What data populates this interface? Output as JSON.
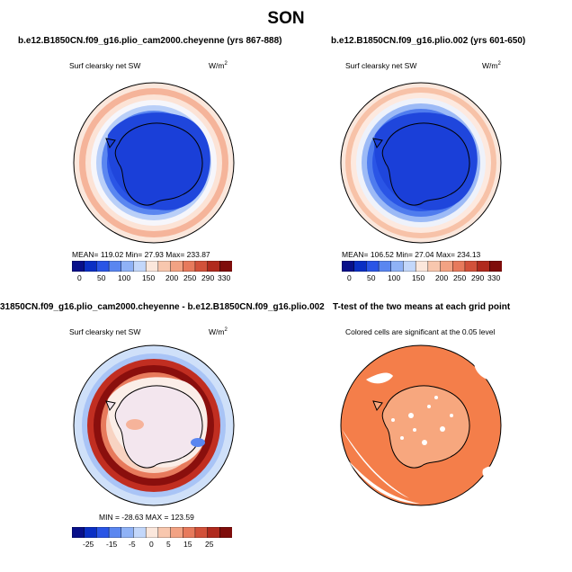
{
  "figure_title": "SON",
  "panels": [
    {
      "title": "b.e12.B1850CN.f09_g16.plio_cam2000.cheyenne (yrs 867-888)",
      "left_label": "Surf clearsky net SW",
      "right_label": "W/m",
      "right_label_sup": "2",
      "stats": "MEAN= 119.02   Min=   27.93   Max= 233.87",
      "colorbar_ticks": [
        "0",
        "50",
        "100",
        "150",
        "200",
        "250",
        "290",
        "330"
      ]
    },
    {
      "title": "b.e12.B1850CN.f09_g16.plio.002 (yrs 601-650)",
      "left_label": "Surf clearsky net SW",
      "right_label": "W/m",
      "right_label_sup": "2",
      "stats": "MEAN= 106.52   Min=   27.04   Max= 234.13",
      "colorbar_ticks": [
        "0",
        "50",
        "100",
        "150",
        "200",
        "250",
        "290",
        "330"
      ]
    },
    {
      "title": "31850CN.f09_g16.plio_cam2000.cheyenne - b.e12.B1850CN.f09_g16.plio.002",
      "left_label": "Surf clearsky net SW",
      "right_label": "W/m",
      "right_label_sup": "2",
      "stats": "MIN = -28.63  MAX = 123.59",
      "colorbar_ticks": [
        "-25",
        "-15",
        "-5",
        "0",
        "5",
        "15",
        "25"
      ]
    },
    {
      "title": "T-test of the two means at each grid point",
      "left_label": "Colored cells are significant at the 0.05 level"
    }
  ],
  "colors": {
    "abs_scale": [
      "#08108a",
      "#0a2fc4",
      "#2a55e6",
      "#5a86f0",
      "#8fb2f6",
      "#c3d7fa",
      "#fbe7dc",
      "#f8c7ae",
      "#f2a283",
      "#e77a5c",
      "#d2513a",
      "#b02a1e",
      "#7f0d0b"
    ],
    "diff_scale": [
      "#08108a",
      "#0a2fc4",
      "#2a55e6",
      "#5a86f0",
      "#8fb2f6",
      "#c3d7fa",
      "#fbe7dc",
      "#f8c7ae",
      "#f2a283",
      "#e77a5c",
      "#d2513a",
      "#b02a1e",
      "#7f0d0b"
    ],
    "significance": "#f47e4a"
  }
}
